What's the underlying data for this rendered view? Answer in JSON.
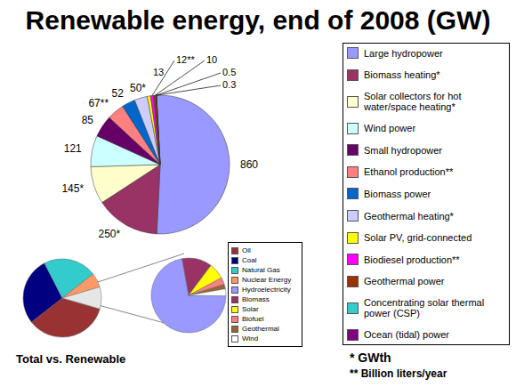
{
  "chart_data": [
    {
      "type": "pie",
      "title": "Renewable energy, end of 2008 (GW)",
      "categories": [
        "Large hydropower",
        "Biomass heating*",
        "Solar collectors for hot water/space heating*",
        "Wind power",
        "Small hydropower",
        "Ethanol production**",
        "Biomass power",
        "Geothermal heating*",
        "Solar PV, grid-connected",
        "Biodiesel production**",
        "Geothermal power",
        "Concentrating solar thermal power (CSP)",
        "Ocean (tidal) power"
      ],
      "values": [
        860,
        250,
        145,
        121,
        85,
        67,
        52,
        50,
        13,
        12,
        10,
        0.5,
        0.3
      ],
      "value_labels": [
        "860",
        "250*",
        "145*",
        "121",
        "85",
        "67**",
        "52",
        "50*",
        "13",
        "12**",
        "10",
        "0.5",
        "0.3"
      ],
      "colors": [
        "#9999FF",
        "#993366",
        "#FFFFCC",
        "#CCFFFF",
        "#660066",
        "#FF8080",
        "#0066CC",
        "#CCCCFF",
        "#FFFF00",
        "#FF00FF",
        "#993300",
        "#33CCCC",
        "#800080"
      ],
      "data_labels": true,
      "legend": "right",
      "annotations": [
        "* GWth",
        "** Billion liters/year"
      ]
    },
    {
      "type": "pie",
      "title": "Total vs. Renewable",
      "categories": [
        "Oil",
        "Coal",
        "Natural Gas",
        "Nuclear Energy",
        null
      ],
      "values": [
        35,
        28,
        22,
        6,
        9
      ],
      "colors": [
        "#993333",
        "#000080",
        "#33CCCC",
        "#FF9966",
        "#E6E6E6"
      ],
      "legend": "right"
    },
    {
      "type": "pie",
      "categories": [
        "Hydroelectricity",
        "Biomass",
        "Solar",
        "Biofuel",
        "Geothermal",
        "Wind"
      ],
      "values": [
        72,
        13,
        7,
        3,
        2,
        3
      ],
      "colors": [
        "#9999FF",
        "#993366",
        "#FFFF00",
        "#FF8080",
        "#996633",
        "#FFFFFF"
      ],
      "legend": "right"
    }
  ]
}
